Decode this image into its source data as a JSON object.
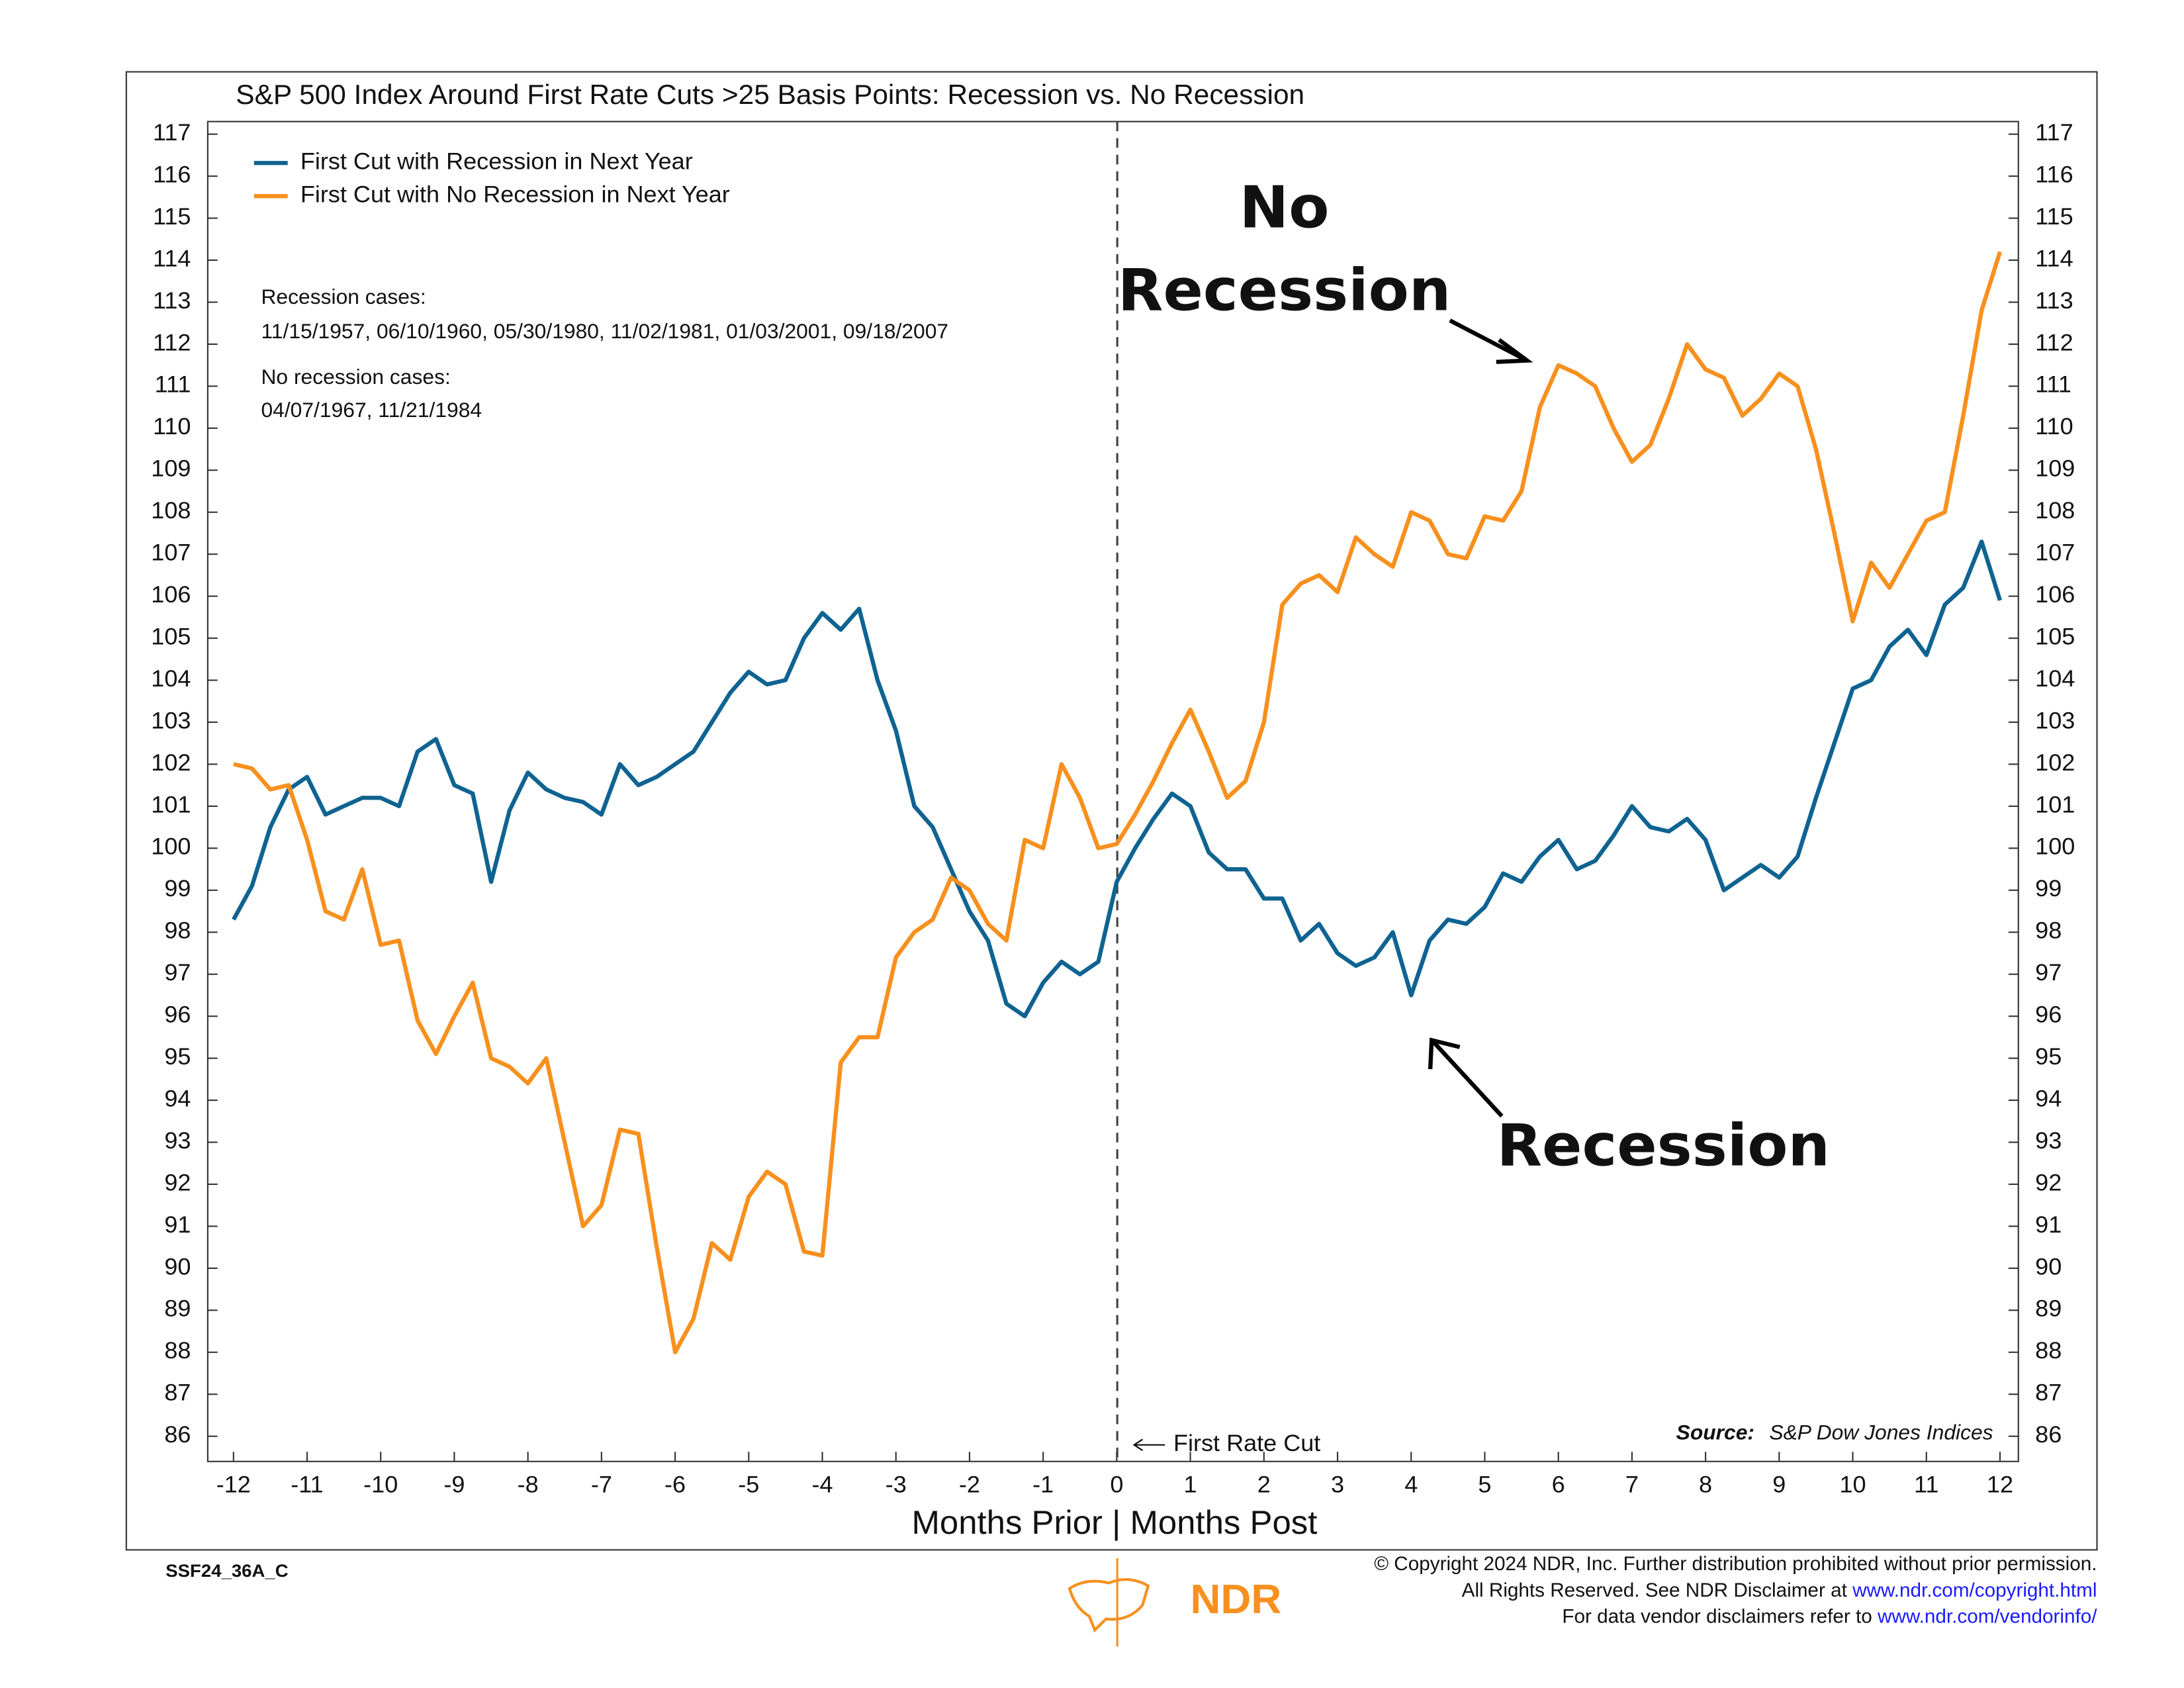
{
  "chart_data": {
    "type": "line",
    "title": "S&P 500 Index Around First Rate Cuts >25 Basis Points: Recession vs. No Recession",
    "x_label": "Months Prior | Months Post",
    "notes": [
      "Recession cases:",
      "11/15/1957, 06/10/1960, 05/30/1980, 11/02/1981, 01/03/2001, 09/18/2007",
      "No recession cases:",
      "04/07/1967, 11/21/1984"
    ],
    "annotations": {
      "no_recession": [
        "No",
        "Recession"
      ],
      "recession": "Recession",
      "first_cut": "First Rate Cut"
    },
    "source": {
      "label": "Source:",
      "text": "S&P Dow Jones Indices"
    },
    "code": "SSF24_36A_C",
    "logo": "NDR",
    "copyright": [
      [
        "© Copyright 2024 NDR, Inc. Further distribution prohibited without prior permission."
      ],
      [
        "All Rights Reserved. See NDR Disclaimer at ",
        "www.ndr.com/copyright.html"
      ],
      [
        "For data vendor disclaimers refer to ",
        "www.ndr.com/vendorinfo/"
      ]
    ],
    "xlim": [
      -12.35,
      12.25
    ],
    "ylim": [
      85.4,
      117.3
    ],
    "xticks": [
      -12,
      -11,
      -10,
      -9,
      -8,
      -7,
      -6,
      -5,
      -4,
      -3,
      -2,
      -1,
      0,
      1,
      2,
      3,
      4,
      5,
      6,
      7,
      8,
      9,
      10,
      11,
      12
    ],
    "yticks": [
      86,
      87,
      88,
      89,
      90,
      91,
      92,
      93,
      94,
      95,
      96,
      97,
      98,
      99,
      100,
      101,
      102,
      103,
      104,
      105,
      106,
      107,
      108,
      109,
      110,
      111,
      112,
      113,
      114,
      115,
      116,
      117
    ],
    "x": [
      -12,
      -11.75,
      -11.5,
      -11.25,
      -11,
      -10.75,
      -10.5,
      -10.25,
      -10,
      -9.75,
      -9.5,
      -9.25,
      -9,
      -8.75,
      -8.5,
      -8.25,
      -8,
      -7.75,
      -7.5,
      -7.25,
      -7,
      -6.75,
      -6.5,
      -6.25,
      -6,
      -5.75,
      -5.5,
      -5.25,
      -5,
      -4.75,
      -4.5,
      -4.25,
      -4,
      -3.75,
      -3.5,
      -3.25,
      -3,
      -2.75,
      -2.5,
      -2.25,
      -2,
      -1.75,
      -1.5,
      -1.25,
      -1,
      -0.75,
      -0.5,
      -0.25,
      0,
      0.25,
      0.5,
      0.75,
      1,
      1.25,
      1.5,
      1.75,
      2,
      2.25,
      2.5,
      2.75,
      3,
      3.25,
      3.5,
      3.75,
      4,
      4.25,
      4.5,
      4.75,
      5,
      5.25,
      5.5,
      5.75,
      6,
      6.25,
      6.5,
      6.75,
      7,
      7.25,
      7.5,
      7.75,
      8,
      8.25,
      8.5,
      8.75,
      9,
      9.25,
      9.5,
      9.75,
      10,
      10.25,
      10.5,
      10.75,
      11,
      11.25,
      11.5,
      11.75,
      12
    ],
    "series": [
      {
        "name": "First Cut with Recession in Next Year",
        "color": "#0f6391",
        "values": [
          98.3,
          99.1,
          100.5,
          101.4,
          101.7,
          100.8,
          101.0,
          101.2,
          101.2,
          101.0,
          102.3,
          102.6,
          101.5,
          101.3,
          99.2,
          100.9,
          101.8,
          101.4,
          101.2,
          101.1,
          100.8,
          102.0,
          101.5,
          101.7,
          102.0,
          102.3,
          103.0,
          103.7,
          104.2,
          103.9,
          104.0,
          105.0,
          105.6,
          105.2,
          105.7,
          104.0,
          102.8,
          101.0,
          100.5,
          99.5,
          98.5,
          97.8,
          96.3,
          96.0,
          96.8,
          97.3,
          97.0,
          97.3,
          99.2,
          100.0,
          100.7,
          101.3,
          101.0,
          99.9,
          99.5,
          99.5,
          98.8,
          98.8,
          97.8,
          98.2,
          97.5,
          97.2,
          97.4,
          98.0,
          96.5,
          97.8,
          98.3,
          98.2,
          98.6,
          99.4,
          99.2,
          99.8,
          100.2,
          99.5,
          99.7,
          100.3,
          101.0,
          100.5,
          100.4,
          100.7,
          100.2,
          99.0,
          99.3,
          99.6,
          99.3,
          99.8,
          101.2,
          102.5,
          103.8,
          104.0,
          104.8,
          105.2,
          104.6,
          105.8,
          106.2,
          107.3,
          105.9
        ]
      },
      {
        "name": "First Cut with No Recession in Next Year",
        "color": "#f7901e",
        "values": [
          102.0,
          101.9,
          101.4,
          101.5,
          100.2,
          98.5,
          98.3,
          99.5,
          97.7,
          97.8,
          95.9,
          95.1,
          96.0,
          96.8,
          95.0,
          94.8,
          94.4,
          95.0,
          93.0,
          91.0,
          91.5,
          93.3,
          93.2,
          90.5,
          88.0,
          88.8,
          90.6,
          90.2,
          91.7,
          92.3,
          92.0,
          90.4,
          90.3,
          94.9,
          95.5,
          95.5,
          97.4,
          98.0,
          98.3,
          99.3,
          99.0,
          98.2,
          97.8,
          100.2,
          100.0,
          102.0,
          101.2,
          100.0,
          100.1,
          100.8,
          101.6,
          102.5,
          103.3,
          102.3,
          101.2,
          101.6,
          103.0,
          105.8,
          106.3,
          106.5,
          106.1,
          107.4,
          107.0,
          106.7,
          108.0,
          107.8,
          107.0,
          106.9,
          107.9,
          107.8,
          108.5,
          110.5,
          111.5,
          111.3,
          111.0,
          110.0,
          109.2,
          109.6,
          110.7,
          112.0,
          111.4,
          111.2,
          110.3,
          110.7,
          111.3,
          111.0,
          109.5,
          107.5,
          105.4,
          106.8,
          106.2,
          107.0,
          107.8,
          108.0,
          110.3,
          112.8,
          114.2
        ]
      }
    ]
  }
}
